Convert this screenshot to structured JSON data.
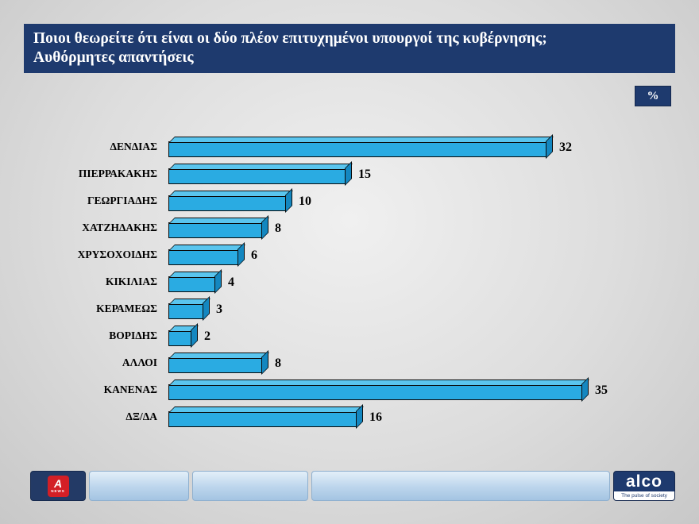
{
  "title": {
    "line1": "Ποιοι θεωρείτε ότι είναι οι δύο πλέον επιτυχημένοι υπουργοί της κυβέρνησης;",
    "line2": "Αυθόρμητες απαντήσεις"
  },
  "percent_badge": "%",
  "chart_data": {
    "type": "bar",
    "orientation": "horizontal",
    "title": "Ποιοι θεωρείτε ότι είναι οι δύο πλέον επιτυχημένοι υπουργοί της κυβέρνησης; Αυθόρμητες απαντήσεις",
    "unit": "%",
    "categories": [
      "ΔΕΝΔΙΑΣ",
      "ΠΙΕΡΡΑΚΑΚΗΣ",
      "ΓΕΩΡΓΙΑΔΗΣ",
      "ΧΑΤΖΗΔΑΚΗΣ",
      "ΧΡΥΣΟΧΟΙΔΗΣ",
      "ΚΙΚΙΛΙΑΣ",
      "ΚΕΡΑΜΕΩΣ",
      "ΒΟΡΙΔΗΣ",
      "ΑΛΛΟΙ",
      "ΚΑΝΕΝΑΣ",
      "ΔΞ/ΔΑ"
    ],
    "values": [
      32,
      15,
      10,
      8,
      6,
      4,
      3,
      2,
      8,
      35,
      16
    ],
    "xlim": [
      0,
      36
    ],
    "grid": false,
    "value_labels": true,
    "legend": false,
    "bar_color": "#2aabe2"
  },
  "footer": {
    "alpha_logo_letter": "A",
    "alpha_logo_news": "NEWS",
    "alco_logo": "alco",
    "alco_tagline": "The pulse of society"
  },
  "colors": {
    "title_bar": "#1e3a6e",
    "bar_front": "#2aabe2",
    "bar_top": "#5ac5ee",
    "bar_side": "#1487c0",
    "badge": "#1e3a6e",
    "alpha_red": "#d31f26"
  }
}
